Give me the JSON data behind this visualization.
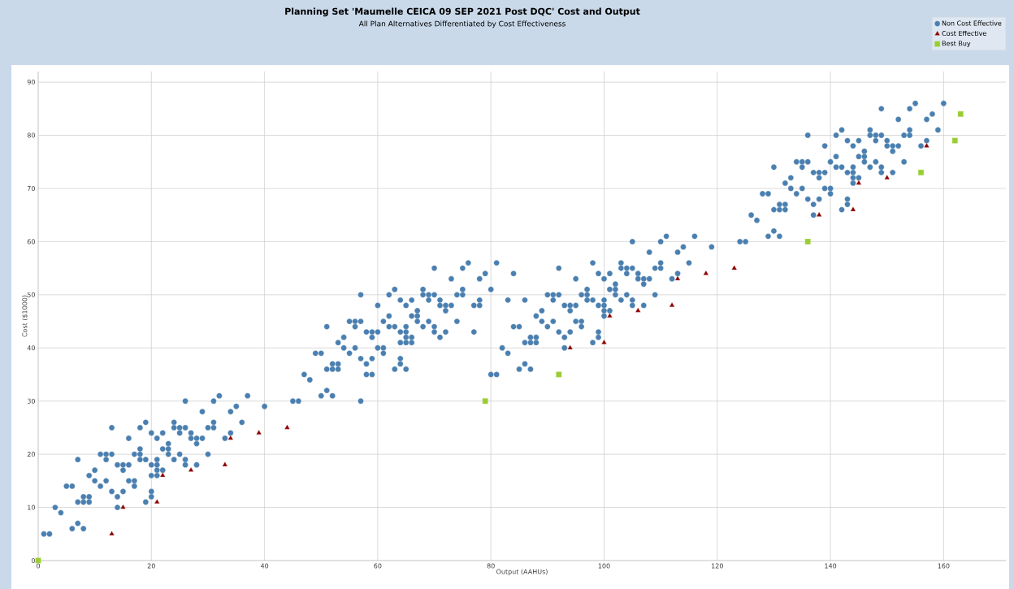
{
  "chart_data": {
    "type": "scatter",
    "title": "Planning Set 'Maumelle CEICA 09 SEP 2021 Post DQC' Cost and Output",
    "subtitle": "All Plan Alternatives Differentiated by Cost Effectiveness",
    "xlabel": "Output (AAHUs)",
    "ylabel": "Cost ($1000)",
    "xlim": [
      0,
      171
    ],
    "ylim": [
      0,
      92
    ],
    "xticks": [
      0,
      20,
      40,
      60,
      80,
      100,
      120,
      140,
      160
    ],
    "yticks": [
      0,
      10,
      20,
      30,
      40,
      50,
      60,
      70,
      80,
      90
    ],
    "grid": true,
    "legend": "top right",
    "series": [
      {
        "name": "Non Cost Effective",
        "color": "#4a7fb0",
        "marker": "circle",
        "x": [
          1,
          2,
          3,
          4,
          5,
          6,
          6,
          7,
          8,
          7,
          7,
          8,
          8,
          9,
          9,
          9,
          10,
          10,
          11,
          11,
          12,
          12,
          12,
          13,
          13,
          13,
          14,
          14,
          14,
          15,
          15,
          15,
          16,
          16,
          16,
          17,
          17,
          17,
          18,
          18,
          18,
          18,
          19,
          19,
          19,
          20,
          20,
          20,
          20,
          20,
          21,
          21,
          21,
          21,
          21,
          22,
          22,
          22,
          23,
          23,
          23,
          24,
          24,
          24,
          25,
          25,
          25,
          26,
          26,
          26,
          26,
          27,
          27,
          28,
          28,
          28,
          29,
          29,
          30,
          30,
          31,
          31,
          31,
          32,
          33,
          34,
          34,
          35,
          36,
          37,
          40,
          45,
          46,
          47,
          48,
          50,
          51,
          52,
          49,
          50,
          51,
          52,
          52,
          53,
          53,
          51,
          53,
          54,
          54,
          55,
          55,
          56,
          56,
          56,
          57,
          57,
          57,
          57,
          58,
          58,
          58,
          59,
          59,
          59,
          59,
          60,
          60,
          60,
          61,
          61,
          61,
          62,
          62,
          62,
          63,
          63,
          63,
          64,
          64,
          64,
          64,
          64,
          65,
          65,
          65,
          65,
          65,
          65,
          66,
          66,
          66,
          66,
          67,
          67,
          67,
          68,
          68,
          68,
          69,
          69,
          69,
          70,
          70,
          70,
          70,
          71,
          71,
          71,
          72,
          72,
          72,
          73,
          73,
          74,
          74,
          75,
          75,
          75,
          76,
          77,
          77,
          78,
          78,
          78,
          79,
          80,
          81,
          80,
          81,
          82,
          83,
          83,
          84,
          84,
          85,
          86,
          86,
          87,
          87,
          88,
          88,
          85,
          86,
          87,
          88,
          89,
          89,
          90,
          90,
          91,
          91,
          91,
          92,
          92,
          92,
          93,
          93,
          93,
          94,
          94,
          94,
          95,
          95,
          95,
          96,
          96,
          96,
          97,
          97,
          97,
          98,
          98,
          98,
          99,
          99,
          99,
          99,
          100,
          100,
          100,
          100,
          100,
          101,
          101,
          101,
          102,
          102,
          102,
          103,
          103,
          103,
          104,
          104,
          104,
          105,
          105,
          105,
          105,
          106,
          106,
          107,
          107,
          107,
          108,
          108,
          109,
          109,
          110,
          110,
          110,
          111,
          112,
          113,
          113,
          114,
          115,
          116,
          119,
          124,
          125,
          126,
          127,
          129,
          130,
          131,
          128,
          129,
          130,
          131,
          131,
          132,
          132,
          130,
          132,
          133,
          133,
          134,
          134,
          135,
          135,
          135,
          136,
          136,
          136,
          137,
          137,
          137,
          138,
          138,
          138,
          139,
          139,
          139,
          140,
          140,
          140,
          141,
          141,
          141,
          142,
          142,
          142,
          143,
          143,
          143,
          143,
          144,
          144,
          144,
          144,
          144,
          145,
          145,
          145,
          146,
          146,
          146,
          147,
          147,
          147,
          148,
          148,
          148,
          149,
          149,
          149,
          149,
          150,
          150,
          151,
          151,
          151,
          152,
          152,
          153,
          153,
          154,
          154,
          154,
          155,
          156,
          157,
          157,
          158,
          159,
          160
        ],
        "values": [
          5,
          5,
          10,
          9,
          14,
          14,
          6,
          7,
          6,
          19,
          11,
          11,
          12,
          12,
          11,
          16,
          17,
          15,
          14,
          20,
          20,
          19,
          15,
          20,
          25,
          13,
          18,
          12,
          10,
          18,
          17,
          13,
          18,
          23,
          15,
          20,
          15,
          14,
          21,
          20,
          19,
          25,
          26,
          19,
          11,
          24,
          18,
          16,
          13,
          12,
          23,
          19,
          18,
          17,
          16,
          24,
          21,
          17,
          22,
          21,
          20,
          26,
          25,
          19,
          25,
          24,
          20,
          30,
          25,
          19,
          18,
          24,
          23,
          23,
          22,
          18,
          28,
          23,
          25,
          20,
          30,
          26,
          25,
          31,
          23,
          28,
          24,
          29,
          26,
          31,
          29,
          30,
          30,
          35,
          34,
          31,
          32,
          31,
          39,
          39,
          36,
          36,
          37,
          37,
          36,
          44,
          41,
          42,
          40,
          39,
          45,
          45,
          44,
          40,
          45,
          50,
          38,
          30,
          43,
          37,
          35,
          43,
          42,
          38,
          35,
          48,
          43,
          40,
          45,
          40,
          39,
          50,
          46,
          44,
          51,
          44,
          36,
          49,
          43,
          41,
          38,
          37,
          48,
          44,
          43,
          42,
          41,
          36,
          49,
          46,
          42,
          41,
          47,
          46,
          45,
          51,
          50,
          44,
          50,
          49,
          45,
          55,
          50,
          44,
          43,
          49,
          48,
          42,
          48,
          47,
          43,
          53,
          48,
          50,
          45,
          55,
          51,
          50,
          56,
          48,
          43,
          53,
          49,
          48,
          54,
          51,
          56,
          35,
          35,
          40,
          39,
          49,
          54,
          44,
          44,
          49,
          41,
          42,
          41,
          42,
          41,
          36,
          37,
          36,
          46,
          47,
          45,
          50,
          44,
          50,
          49,
          45,
          50,
          55,
          43,
          48,
          42,
          40,
          48,
          47,
          43,
          48,
          53,
          45,
          45,
          44,
          50,
          51,
          50,
          49,
          56,
          49,
          41,
          54,
          48,
          43,
          42,
          53,
          49,
          48,
          47,
          46,
          54,
          51,
          47,
          52,
          51,
          50,
          56,
          55,
          49,
          55,
          54,
          50,
          60,
          55,
          49,
          48,
          54,
          53,
          53,
          52,
          48,
          58,
          53,
          55,
          50,
          56,
          55,
          60,
          61,
          53,
          58,
          54,
          59,
          56,
          61,
          59,
          60,
          60,
          65,
          64,
          61,
          62,
          61,
          69,
          69,
          66,
          66,
          67,
          67,
          66,
          74,
          71,
          72,
          70,
          69,
          75,
          75,
          74,
          70,
          75,
          80,
          68,
          73,
          67,
          65,
          73,
          72,
          68,
          78,
          73,
          70,
          70,
          69,
          75,
          80,
          76,
          74,
          81,
          74,
          66,
          79,
          73,
          68,
          67,
          78,
          74,
          73,
          72,
          71,
          79,
          76,
          72,
          77,
          76,
          75,
          81,
          80,
          74,
          80,
          79,
          75,
          85,
          80,
          74,
          73,
          79,
          78,
          78,
          77,
          73,
          83,
          78,
          80,
          75,
          85,
          81,
          80,
          86,
          78,
          83,
          79,
          84,
          81,
          86
        ]
      },
      {
        "name": "Cost Effective",
        "color": "#8b0000",
        "marker": "triangle",
        "x": [
          13,
          15,
          21,
          22,
          27,
          33,
          34,
          39,
          44,
          94,
          100,
          101,
          106,
          112,
          113,
          118,
          123,
          138,
          144,
          145,
          150,
          157
        ],
        "values": [
          5,
          10,
          11,
          16,
          17,
          18,
          23,
          24,
          25,
          40,
          41,
          46,
          47,
          48,
          53,
          54,
          55,
          65,
          66,
          71,
          72,
          78
        ]
      },
      {
        "name": "Best Buy",
        "color": "#9acd32",
        "marker": "square",
        "x": [
          0,
          79,
          92,
          136,
          156,
          162,
          163
        ],
        "values": [
          0,
          30,
          35,
          60,
          73,
          79,
          84
        ]
      }
    ]
  }
}
